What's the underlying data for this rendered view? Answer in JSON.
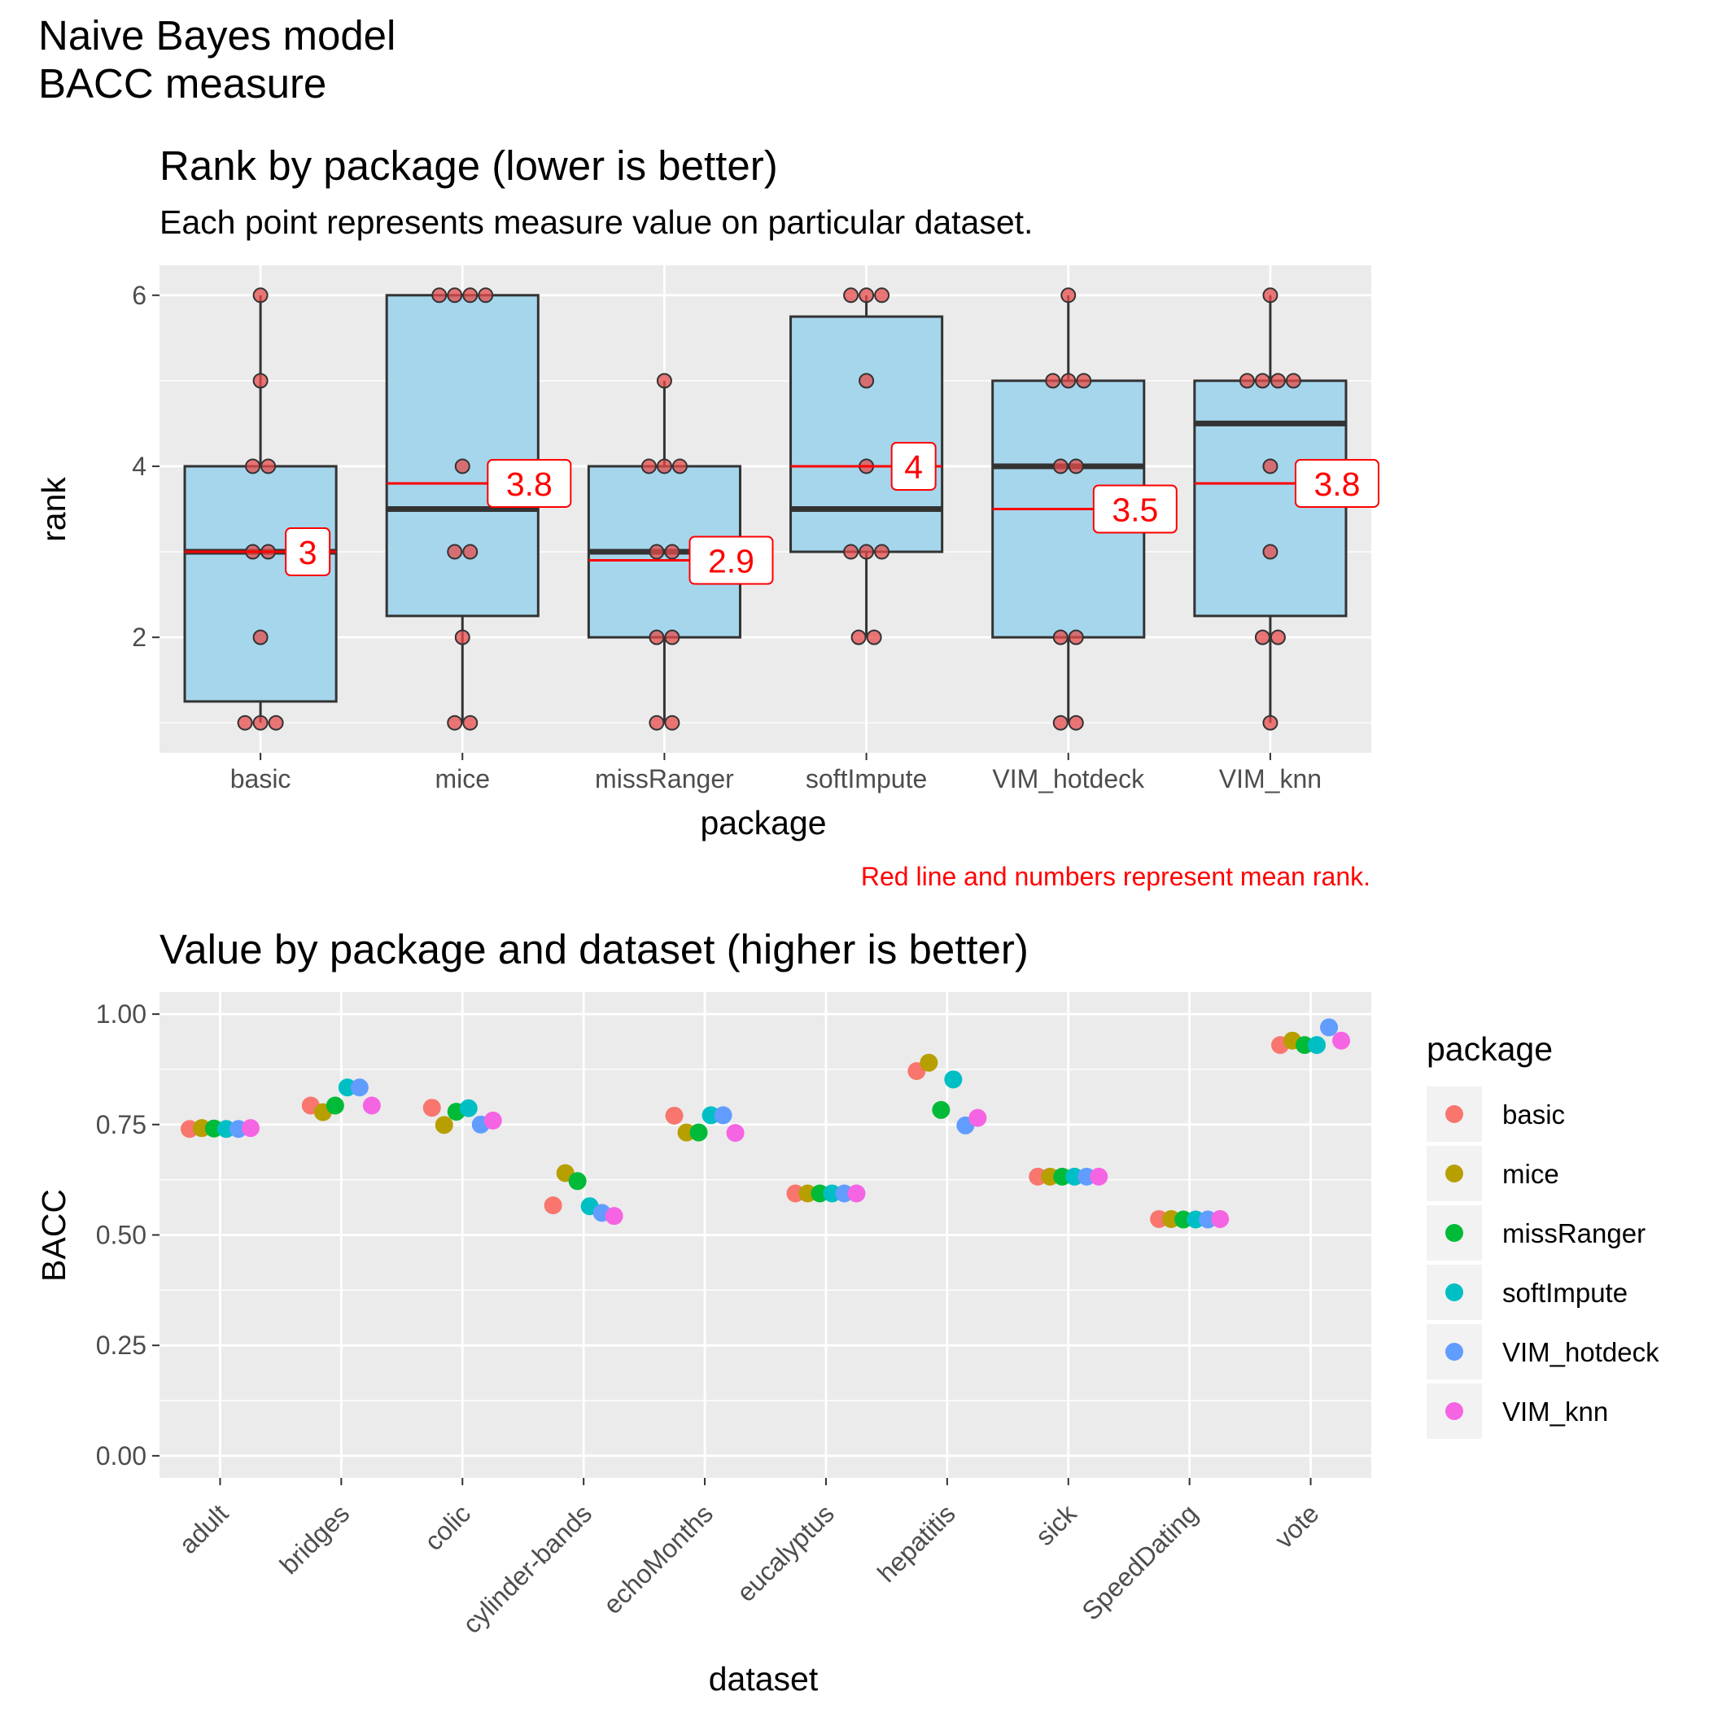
{
  "header": {
    "line1": "Naive Bayes model",
    "line2": "BACC measure"
  },
  "chart_data": [
    {
      "type": "box",
      "title": "Rank by package (lower is better)",
      "subtitle": "Each point represents measure value on particular dataset.",
      "xlabel": "package",
      "ylabel": "rank",
      "caption": "Red line and numbers represent mean rank.",
      "ylim": [
        0.65,
        6.35
      ],
      "yticks": [
        2,
        4,
        6
      ],
      "grid": true,
      "categories": [
        "basic",
        "mice",
        "missRanger",
        "softImpute",
        "VIM_hotdeck",
        "VIM_knn"
      ],
      "boxes": [
        {
          "package": "basic",
          "q1": 1.25,
          "median": 3.0,
          "q3": 4.0,
          "whisker_low": 1,
          "whisker_high": 6,
          "mean": 3.0,
          "mean_label": "3",
          "points": [
            6,
            5,
            4,
            4,
            3,
            3,
            2,
            1,
            1,
            1
          ]
        },
        {
          "package": "mice",
          "q1": 2.25,
          "median": 3.5,
          "q3": 6.0,
          "whisker_low": 1,
          "whisker_high": 6,
          "mean": 3.8,
          "mean_label": "3.8",
          "points": [
            6,
            6,
            6,
            6,
            4,
            3,
            3,
            2,
            1,
            1
          ]
        },
        {
          "package": "missRanger",
          "q1": 2.0,
          "median": 3.0,
          "q3": 4.0,
          "whisker_low": 1,
          "whisker_high": 5,
          "mean": 2.9,
          "mean_label": "2.9",
          "points": [
            5,
            4,
            4,
            4,
            3,
            3,
            2,
            2,
            1,
            1
          ]
        },
        {
          "package": "softImpute",
          "q1": 3.0,
          "median": 3.5,
          "q3": 5.75,
          "whisker_low": 2,
          "whisker_high": 6,
          "mean": 4.0,
          "mean_label": "4",
          "points": [
            6,
            6,
            6,
            5,
            4,
            3,
            3,
            3,
            2,
            2
          ]
        },
        {
          "package": "VIM_hotdeck",
          "q1": 2.0,
          "median": 4.0,
          "q3": 5.0,
          "whisker_low": 1,
          "whisker_high": 6,
          "mean": 3.5,
          "mean_label": "3.5",
          "points": [
            6,
            5,
            5,
            5,
            4,
            4,
            2,
            2,
            1,
            1
          ]
        },
        {
          "package": "VIM_knn",
          "q1": 2.25,
          "median": 4.5,
          "q3": 5.0,
          "whisker_low": 1,
          "whisker_high": 6,
          "mean": 3.8,
          "mean_label": "3.8",
          "points": [
            6,
            5,
            5,
            5,
            5,
            4,
            3,
            2,
            2,
            1
          ]
        }
      ]
    },
    {
      "type": "scatter",
      "title": "Value by package and dataset (higher is better)",
      "xlabel": "dataset",
      "ylabel": "BACC",
      "ylim": [
        -0.05,
        1.05
      ],
      "yticks": [
        "0.00",
        "0.25",
        "0.50",
        "0.75",
        "1.00"
      ],
      "grid": true,
      "legend_position": "right",
      "legend_title": "package",
      "categories": [
        "adult",
        "bridges",
        "colic",
        "cylinder-bands",
        "echoMonths",
        "eucalyptus",
        "hepatitis",
        "sick",
        "SpeedDating",
        "vote"
      ],
      "series": [
        {
          "name": "basic",
          "color": "#F8766D",
          "values": [
            0.74,
            0.793,
            0.788,
            0.567,
            0.77,
            0.594,
            0.871,
            0.632,
            0.536,
            0.93
          ]
        },
        {
          "name": "mice",
          "color": "#B79F00",
          "values": [
            0.742,
            0.778,
            0.749,
            0.64,
            0.732,
            0.594,
            0.89,
            0.632,
            0.536,
            0.94
          ]
        },
        {
          "name": "missRanger",
          "color": "#00BA38",
          "values": [
            0.741,
            0.793,
            0.779,
            0.622,
            0.732,
            0.594,
            0.783,
            0.632,
            0.535,
            0.93
          ]
        },
        {
          "name": "softImpute",
          "color": "#00BFC4",
          "values": [
            0.74,
            0.834,
            0.787,
            0.565,
            0.771,
            0.594,
            0.852,
            0.632,
            0.535,
            0.93
          ]
        },
        {
          "name": "VIM_hotdeck",
          "color": "#619CFF",
          "values": [
            0.74,
            0.834,
            0.75,
            0.55,
            0.771,
            0.594,
            0.748,
            0.632,
            0.535,
            0.97
          ]
        },
        {
          "name": "VIM_knn",
          "color": "#F564E3",
          "values": [
            0.742,
            0.793,
            0.759,
            0.543,
            0.731,
            0.594,
            0.765,
            0.632,
            0.536,
            0.94
          ]
        }
      ]
    }
  ]
}
